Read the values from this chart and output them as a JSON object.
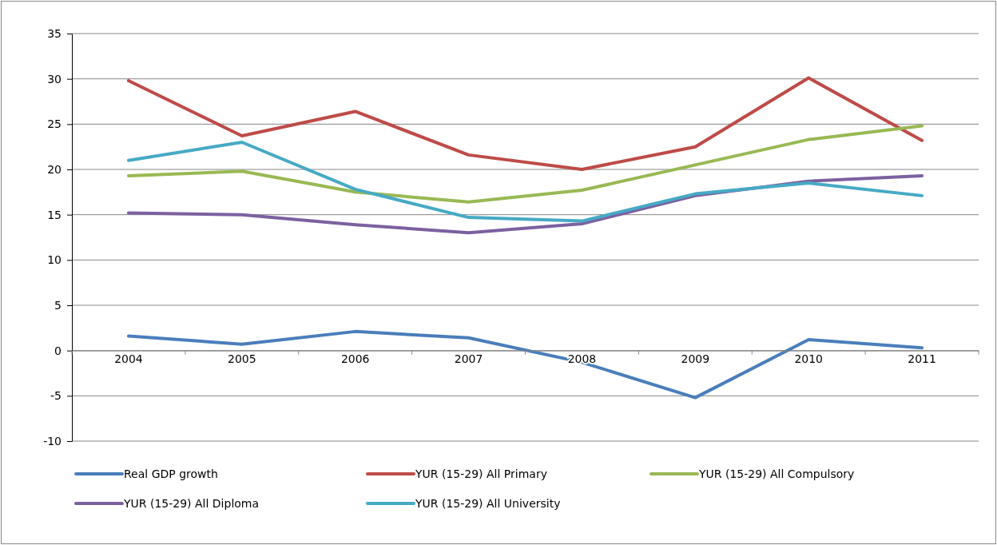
{
  "chart_data": {
    "type": "line",
    "categories": [
      "2004",
      "2005",
      "2006",
      "2007",
      "2008",
      "2009",
      "2010",
      "2011"
    ],
    "ylim": [
      -10,
      35
    ],
    "yticks": [
      -10,
      -5,
      0,
      5,
      10,
      15,
      20,
      25,
      30,
      35
    ],
    "grid": "y",
    "legend": "bottom",
    "marker": "none",
    "line_style": "solid",
    "series": [
      {
        "name": "Real GDP  growth",
        "color": "#4a7ebb",
        "values": [
          1.6,
          0.7,
          2.1,
          1.4,
          -1.3,
          -5.2,
          1.2,
          0.3
        ]
      },
      {
        "name": "YUR (15-29) All Primary",
        "color": "#be4b48",
        "values": [
          29.8,
          23.7,
          26.4,
          21.6,
          20.0,
          22.5,
          30.1,
          23.2
        ]
      },
      {
        "name": "YUR (15-29) All Compulsory",
        "color": "#98b954",
        "values": [
          19.3,
          19.8,
          17.5,
          16.4,
          17.7,
          20.5,
          23.3,
          24.8
        ]
      },
      {
        "name": "YUR (15-29) All Diploma",
        "color": "#7d60a0",
        "values": [
          15.2,
          15.0,
          13.9,
          13.0,
          14.0,
          17.1,
          18.7,
          19.3
        ]
      },
      {
        "name": "YUR (15-29) All University",
        "color": "#46aac5",
        "values": [
          21.0,
          23.0,
          17.8,
          14.7,
          14.3,
          17.3,
          18.5,
          17.1
        ]
      }
    ]
  }
}
